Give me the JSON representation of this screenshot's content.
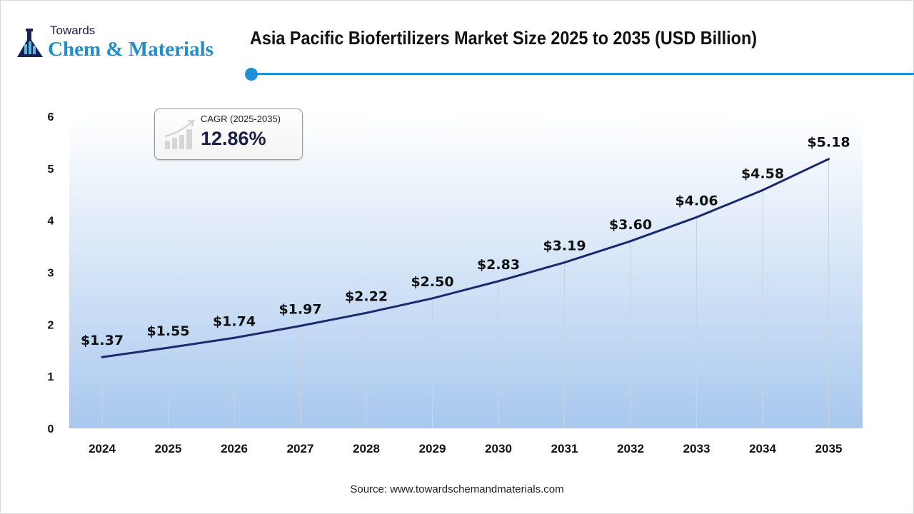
{
  "logo": {
    "line1": "Towards",
    "line2": "Chem & Materials"
  },
  "header": {
    "title": "Asia Pacific Biofertilizers Market Size 2025 to 2035 (USD Billion)"
  },
  "cagr": {
    "label": "CAGR (2025-2035)",
    "value": "12.86%",
    "icon": "growth-bar-chart-icon"
  },
  "colors": {
    "line": "#1a2a6c",
    "accent": "#1f8fd6",
    "area_top": "#ffffff",
    "area_bottom": "#a8c8ee"
  },
  "chart_data": {
    "type": "area",
    "title": "Asia Pacific Biofertilizers Market Size 2025 to 2035 (USD Billion)",
    "xlabel": "",
    "ylabel": "",
    "categories": [
      "2024",
      "2025",
      "2026",
      "2027",
      "2028",
      "2029",
      "2030",
      "2031",
      "2032",
      "2033",
      "2034",
      "2035"
    ],
    "values": [
      1.37,
      1.55,
      1.74,
      1.97,
      2.22,
      2.5,
      2.83,
      3.19,
      3.6,
      4.06,
      4.58,
      5.18
    ],
    "data_labels": [
      "$1.37",
      "$1.55",
      "$1.74",
      "$1.97",
      "$2.22",
      "$2.50",
      "$2.83",
      "$3.19",
      "$3.60",
      "$4.06",
      "$4.58",
      "$5.18"
    ],
    "yticks": [
      "0",
      "1",
      "2",
      "3",
      "4",
      "5",
      "6"
    ],
    "ylim": [
      0,
      6
    ],
    "grid": false,
    "legend": "none"
  },
  "source": "Source: www.towardschemandmaterials.com"
}
